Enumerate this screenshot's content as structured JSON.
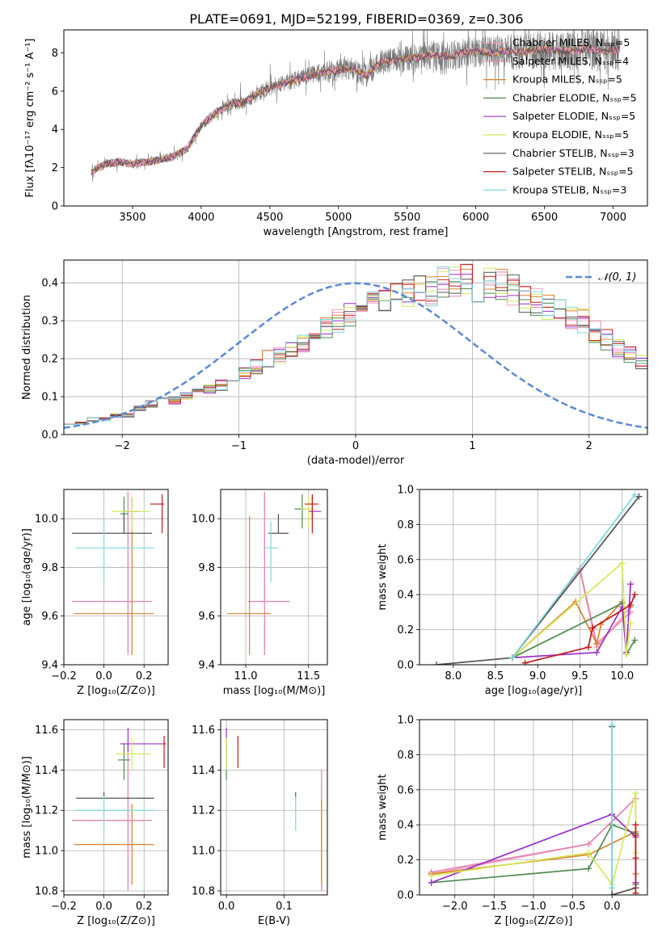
{
  "figure": {
    "title": "PLATE=0691, MJD=52199, FIBERID=0369, z=0.306"
  },
  "colors": {
    "Chabrier MILES": "#f0a1bd",
    "Salpeter MILES": "#e685b3",
    "Kroupa MILES": "#d9822b",
    "Chabrier ELODIE": "#4f8a52",
    "Salpeter ELODIE": "#9b30c9",
    "Kroupa ELODIE": "#d6e85a",
    "Chabrier STELIB": "#555555",
    "Salpeter STELIB": "#c21b1b",
    "Kroupa STELIB": "#7bd9de",
    "normal_curve": "#5b8ad6",
    "grid": "#b0b0b0"
  },
  "chart_data": [
    {
      "type": "line",
      "name": "spectrum",
      "xlabel": "wavelength [Angstrom, rest frame]",
      "ylabel": "Flux [fλ10⁻¹⁷ erg cm⁻² s⁻¹ A⁻¹]",
      "xlim": [
        3000,
        7250
      ],
      "ylim": [
        0,
        9.2
      ],
      "xticks": [
        3500,
        4000,
        4500,
        5000,
        5500,
        6000,
        6500,
        7000
      ],
      "yticks": [
        0,
        2,
        4,
        6,
        8
      ],
      "grid": false,
      "legend_position": "top-right",
      "continuum": {
        "x": [
          3200,
          3300,
          3400,
          3500,
          3600,
          3700,
          3800,
          3900,
          4000,
          4100,
          4200,
          4300,
          4400,
          4500,
          4600,
          4700,
          4800,
          4900,
          5000,
          5100,
          5200,
          5300,
          5400,
          5500,
          5600,
          5700,
          5800,
          5900,
          6000,
          6100,
          6200,
          6300,
          6400,
          6500,
          6600,
          6700,
          6800,
          6900,
          7000,
          7050
        ],
        "y": [
          1.8,
          2.2,
          2.3,
          2.2,
          2.3,
          2.4,
          2.6,
          3.0,
          4.2,
          4.8,
          5.3,
          5.4,
          5.8,
          6.2,
          6.4,
          6.6,
          6.8,
          7.0,
          7.1,
          7.2,
          6.8,
          7.5,
          7.6,
          7.7,
          7.8,
          7.9,
          7.8,
          8.0,
          8.1,
          8.0,
          8.1,
          8.0,
          8.1,
          8.2,
          8.1,
          8.1,
          8.2,
          8.1,
          8.1,
          8.2
        ]
      },
      "series": [
        {
          "name": "Chabrier MILES, Nₛₛₚ=5"
        },
        {
          "name": "Salpeter MILES, Nₛₛₚ=4"
        },
        {
          "name": "Kroupa MILES, Nₛₛₚ=5"
        },
        {
          "name": "Chabrier ELODIE, Nₛₛₚ=5"
        },
        {
          "name": "Salpeter ELODIE, Nₛₛₚ=5"
        },
        {
          "name": "Kroupa ELODIE, Nₛₛₚ=5"
        },
        {
          "name": "Chabrier STELIB, Nₛₛₚ=3"
        },
        {
          "name": "Salpeter STELIB, Nₛₛₚ=5"
        },
        {
          "name": "Kroupa STELIB, Nₛₛₚ=3"
        }
      ]
    },
    {
      "type": "line",
      "name": "residual histogram",
      "xlabel": "(data-model)/error",
      "ylabel": "Normed distribution",
      "xlim": [
        -2.5,
        2.5
      ],
      "ylim": [
        0,
        0.46
      ],
      "xticks": [
        -2,
        -1,
        0,
        1,
        2
      ],
      "yticks": [
        0.0,
        0.1,
        0.2,
        0.3,
        0.4
      ],
      "grid": true,
      "legend_position": "top-right",
      "legend": "𝒩(0, 1)",
      "bin_edges_start": -2.5,
      "bin_width": 0.1,
      "histogram": [
        0.03,
        0.03,
        0.04,
        0.04,
        0.05,
        0.05,
        0.07,
        0.08,
        0.09,
        0.09,
        0.1,
        0.11,
        0.12,
        0.13,
        0.14,
        0.16,
        0.18,
        0.2,
        0.21,
        0.22,
        0.24,
        0.26,
        0.28,
        0.3,
        0.32,
        0.33,
        0.35,
        0.36,
        0.38,
        0.37,
        0.39,
        0.38,
        0.4,
        0.4,
        0.41,
        0.39,
        0.4,
        0.4,
        0.38,
        0.36,
        0.35,
        0.34,
        0.33,
        0.31,
        0.3,
        0.27,
        0.25,
        0.23,
        0.21,
        0.19,
        0.17,
        0.15,
        0.13,
        0.12,
        0.11,
        0.1,
        0.08,
        0.07,
        0.06,
        0.05,
        0.05,
        0.04,
        0.03
      ]
    },
    {
      "type": "scatter",
      "name": "age vs Z",
      "xlabel": "Z [log₁₀(Z/Z⊙)]",
      "ylabel": "age  [log₁₀(age/yr)]",
      "xlim": [
        -0.2,
        0.32
      ],
      "ylim": [
        9.4,
        10.12
      ],
      "xticks": [
        -0.2,
        0.0,
        0.2
      ],
      "yticks": [
        9.4,
        9.6,
        9.8,
        10.0
      ],
      "grid": true,
      "points": [
        {
          "series": "Chabrier MILES",
          "x": 0.12,
          "xerr": [
            0.28,
            0.12
          ],
          "y": 9.66,
          "yerr": [
            0.22,
            0.45
          ]
        },
        {
          "series": "Salpeter MILES",
          "x": 0.12,
          "xerr": [
            0.28,
            0.12
          ],
          "y": 9.66,
          "yerr": [
            0.22,
            0.45
          ]
        },
        {
          "series": "Kroupa MILES",
          "x": 0.14,
          "xerr": [
            0.29,
            0.11
          ],
          "y": 9.61,
          "yerr": [
            0.17,
            0.4
          ]
        },
        {
          "series": "Chabrier ELODIE",
          "x": 0.1,
          "xerr": [
            0.02,
            0.02
          ],
          "y": 10.02,
          "yerr": [
            0.08,
            0.07
          ]
        },
        {
          "series": "Salpeter ELODIE",
          "x": 0.14,
          "xerr": [
            0.04,
            0.04
          ],
          "y": 10.03,
          "yerr": [
            0.03,
            0.06
          ]
        },
        {
          "series": "Kroupa ELODIE",
          "x": 0.14,
          "xerr": [
            0.1,
            0.09
          ],
          "y": 10.03,
          "yerr": [
            0.08,
            0.06
          ]
        },
        {
          "series": "Chabrier STELIB",
          "x": 0.1,
          "xerr": [
            0.26,
            0.14
          ],
          "y": 9.94,
          "yerr": [
            0.0,
            0.08
          ]
        },
        {
          "series": "Salpeter STELIB",
          "x": 0.29,
          "xerr": [
            0.06,
            0.01
          ],
          "y": 10.06,
          "yerr": [
            0.12,
            0.04
          ]
        },
        {
          "series": "Kroupa STELIB",
          "x": 0.0,
          "xerr": [
            0.14,
            0.25
          ],
          "y": 9.88,
          "yerr": [
            0.14,
            0.11
          ]
        }
      ]
    },
    {
      "type": "scatter",
      "name": "age vs mass",
      "xlabel": "mass [log₁₀(M/M⊙)]",
      "ylabel": "",
      "xlim": [
        10.8,
        11.65
      ],
      "ylim": [
        9.4,
        10.12
      ],
      "xticks": [
        11.0,
        11.5
      ],
      "yticks": [
        9.4,
        9.6,
        9.8,
        10.0
      ],
      "grid": true,
      "points": [
        {
          "series": "Chabrier MILES",
          "x": 11.15,
          "xerr": [
            0.13,
            0.2
          ],
          "y": 9.66,
          "yerr": [
            0.22,
            0.45
          ]
        },
        {
          "series": "Salpeter MILES",
          "x": 11.15,
          "xerr": [
            0.13,
            0.2
          ],
          "y": 9.66,
          "yerr": [
            0.22,
            0.45
          ]
        },
        {
          "series": "Kroupa MILES",
          "x": 11.03,
          "xerr": [
            0.18,
            0.17
          ],
          "y": 9.61,
          "yerr": [
            0.17,
            0.4
          ]
        },
        {
          "series": "Chabrier ELODIE",
          "x": 11.45,
          "xerr": [
            0.06,
            0.05
          ],
          "y": 10.04,
          "yerr": [
            0.08,
            0.06
          ]
        },
        {
          "series": "Salpeter ELODIE",
          "x": 11.53,
          "xerr": [
            0.03,
            0.07
          ],
          "y": 10.03,
          "yerr": [
            0.04,
            0.06
          ]
        },
        {
          "series": "Kroupa ELODIE",
          "x": 11.5,
          "xerr": [
            0.06,
            0.04
          ],
          "y": 10.04,
          "yerr": [
            0.08,
            0.06
          ]
        },
        {
          "series": "Chabrier STELIB",
          "x": 11.26,
          "xerr": [
            0.08,
            0.08
          ],
          "y": 9.94,
          "yerr": [
            0.0,
            0.08
          ]
        },
        {
          "series": "Salpeter STELIB",
          "x": 11.53,
          "xerr": [
            0.06,
            0.05
          ],
          "y": 10.06,
          "yerr": [
            0.12,
            0.04
          ]
        },
        {
          "series": "Kroupa STELIB",
          "x": 11.2,
          "xerr": [
            0.06,
            0.06
          ],
          "y": 9.88,
          "yerr": [
            0.14,
            0.11
          ]
        }
      ]
    },
    {
      "type": "line",
      "name": "mass weight vs age",
      "xlabel": "age  [log₁₀(age/yr)]",
      "ylabel": "mass weight",
      "xlim": [
        7.6,
        10.3
      ],
      "ylim": [
        0.0,
        1.0
      ],
      "xticks": [
        8.0,
        8.5,
        9.0,
        9.5,
        10.0
      ],
      "yticks": [
        0.0,
        0.2,
        0.4,
        0.6,
        0.8,
        1.0
      ],
      "grid": true,
      "series": [
        {
          "series": "Chabrier MILES",
          "x": [
            8.7,
            9.5,
            9.7,
            10.1
          ],
          "y": [
            0.04,
            0.54,
            0.1,
            0.33
          ]
        },
        {
          "series": "Salpeter MILES",
          "x": [
            8.7,
            9.5,
            9.7,
            10.1
          ],
          "y": [
            0.04,
            0.55,
            0.12,
            0.3
          ]
        },
        {
          "series": "Kroupa MILES",
          "x": [
            8.7,
            9.45,
            9.7,
            9.75,
            10.0
          ],
          "y": [
            0.04,
            0.36,
            0.12,
            0.23,
            0.36
          ]
        },
        {
          "series": "Chabrier ELODIE",
          "x": [
            8.7,
            10.0,
            10.05,
            10.15
          ],
          "y": [
            0.04,
            0.35,
            0.06,
            0.14
          ]
        },
        {
          "series": "Salpeter ELODIE",
          "x": [
            8.7,
            9.7,
            10.0,
            10.05,
            10.1
          ],
          "y": [
            0.04,
            0.07,
            0.33,
            0.07,
            0.46
          ]
        },
        {
          "series": "Kroupa ELODIE",
          "x": [
            8.7,
            10.0,
            10.05,
            10.1
          ],
          "y": [
            0.04,
            0.58,
            0.06,
            0.24
          ]
        },
        {
          "series": "Chabrier STELIB",
          "x": [
            7.8,
            8.7,
            10.2
          ],
          "y": [
            0.0,
            0.04,
            0.96
          ]
        },
        {
          "series": "Salpeter STELIB",
          "x": [
            8.85,
            9.6,
            9.65,
            10.1,
            10.15
          ],
          "y": [
            0.01,
            0.1,
            0.21,
            0.34,
            0.4
          ]
        },
        {
          "series": "Kroupa STELIB",
          "x": [
            8.7,
            10.15
          ],
          "y": [
            0.04,
            0.97
          ]
        }
      ]
    },
    {
      "type": "scatter",
      "name": "mass vs Z",
      "xlabel": "Z [log₁₀(Z/Z⊙)]",
      "ylabel": "mass [log₁₀(M/M⊙)]",
      "xlim": [
        -0.2,
        0.32
      ],
      "ylim": [
        10.78,
        11.65
      ],
      "xticks": [
        -0.2,
        0.0,
        0.2
      ],
      "yticks": [
        10.8,
        11.0,
        11.2,
        11.4,
        11.6
      ],
      "grid": true,
      "points": [
        {
          "series": "Chabrier MILES",
          "x": 0.12,
          "xerr": [
            0.28,
            0.12
          ],
          "y": 11.15,
          "yerr": [
            0.35,
            0.38
          ]
        },
        {
          "series": "Salpeter MILES",
          "x": 0.12,
          "xerr": [
            0.28,
            0.12
          ],
          "y": 11.15,
          "yerr": [
            0.35,
            0.38
          ]
        },
        {
          "series": "Kroupa MILES",
          "x": 0.14,
          "xerr": [
            0.29,
            0.11
          ],
          "y": 11.03,
          "yerr": [
            0.2,
            0.2
          ]
        },
        {
          "series": "Chabrier ELODIE",
          "x": 0.1,
          "xerr": [
            0.03,
            0.03
          ],
          "y": 11.45,
          "yerr": [
            0.1,
            0.08
          ]
        },
        {
          "series": "Salpeter ELODIE",
          "x": 0.12,
          "xerr": [
            0.04,
            0.18
          ],
          "y": 11.53,
          "yerr": [
            0.04,
            0.08
          ]
        },
        {
          "series": "Kroupa ELODIE",
          "x": 0.14,
          "xerr": [
            0.08,
            0.09
          ],
          "y": 11.48,
          "yerr": [
            0.08,
            0.08
          ]
        },
        {
          "series": "Chabrier STELIB",
          "x": 0.0,
          "xerr": [
            0.14,
            0.25
          ],
          "y": 11.26,
          "yerr": [
            0.0,
            0.03
          ]
        },
        {
          "series": "Salpeter STELIB",
          "x": 0.3,
          "xerr": [
            0.0,
            0.01
          ],
          "y": 11.53,
          "yerr": [
            0.12,
            0.04
          ]
        },
        {
          "series": "Kroupa STELIB",
          "x": 0.0,
          "xerr": [
            0.14,
            0.25
          ],
          "y": 11.2,
          "yerr": [
            0.1,
            0.07
          ]
        }
      ]
    },
    {
      "type": "scatter",
      "name": "mass vs E(B-V)",
      "xlabel": "E(B-V)",
      "ylabel": "",
      "xlim": [
        -0.01,
        0.175
      ],
      "ylim": [
        10.78,
        11.65
      ],
      "xticks": [
        0.0,
        0.1
      ],
      "yticks": [
        10.8,
        11.0,
        11.2,
        11.4,
        11.6
      ],
      "grid": true,
      "points": [
        {
          "series": "Chabrier MILES",
          "x": 0.165,
          "y": 11.15,
          "yerr": [
            0.35,
            0.2
          ]
        },
        {
          "series": "Salpeter MILES",
          "x": 0.165,
          "y": 11.15,
          "yerr": [
            0.35,
            0.25
          ]
        },
        {
          "series": "Kroupa MILES",
          "x": 0.165,
          "y": 11.03,
          "yerr": [
            0.2,
            0.22
          ]
        },
        {
          "series": "Chabrier ELODIE",
          "x": 0.0,
          "y": 11.45,
          "yerr": [
            0.1,
            0.08
          ]
        },
        {
          "series": "Salpeter ELODIE",
          "x": 0.0,
          "y": 11.53,
          "yerr": [
            0.04,
            0.08
          ]
        },
        {
          "series": "Kroupa ELODIE",
          "x": 0.0,
          "y": 11.48,
          "yerr": [
            0.08,
            0.08
          ]
        },
        {
          "series": "Chabrier STELIB",
          "x": 0.12,
          "y": 11.26,
          "yerr": [
            0.0,
            0.03
          ]
        },
        {
          "series": "Salpeter STELIB",
          "x": 0.02,
          "y": 11.53,
          "yerr": [
            0.12,
            0.04
          ]
        },
        {
          "series": "Kroupa STELIB",
          "x": 0.12,
          "y": 11.2,
          "yerr": [
            0.1,
            0.07
          ]
        }
      ]
    },
    {
      "type": "line",
      "name": "mass weight vs Z",
      "xlabel": "Z [log₁₀(Z/Z⊙)]",
      "ylabel": "mass weight",
      "xlim": [
        -2.45,
        0.45
      ],
      "ylim": [
        0.0,
        1.0
      ],
      "xticks": [
        -2.0,
        -1.5,
        -1.0,
        -0.5,
        0.0
      ],
      "yticks": [
        0.0,
        0.2,
        0.4,
        0.6,
        0.8,
        1.0
      ],
      "grid": true,
      "series": [
        {
          "series": "Chabrier MILES",
          "x": [
            -2.3,
            -0.3,
            0.3,
            0.3
          ],
          "y": [
            0.12,
            0.29,
            0.55,
            0.35
          ]
        },
        {
          "series": "Salpeter MILES",
          "x": [
            -2.3,
            -0.3,
            0.3
          ],
          "y": [
            0.13,
            0.29,
            0.55
          ]
        },
        {
          "series": "Kroupa MILES",
          "x": [
            -2.3,
            -0.3,
            0.3,
            0.3
          ],
          "y": [
            0.12,
            0.23,
            0.36,
            0.12
          ]
        },
        {
          "series": "Chabrier ELODIE",
          "x": [
            -2.3,
            -0.3,
            0.0,
            0.3,
            0.3
          ],
          "y": [
            0.07,
            0.15,
            0.4,
            0.35,
            0.06
          ]
        },
        {
          "series": "Salpeter ELODIE",
          "x": [
            -2.3,
            0.0,
            0.3,
            0.3
          ],
          "y": [
            0.07,
            0.46,
            0.33,
            0.07
          ]
        },
        {
          "series": "Kroupa ELODIE",
          "x": [
            -2.3,
            -0.3,
            0.0,
            0.3,
            0.3
          ],
          "y": [
            0.11,
            0.24,
            0.06,
            0.58,
            0.24
          ]
        },
        {
          "series": "Chabrier STELIB",
          "x": [
            0.0,
            0.0,
            0.3
          ],
          "y": [
            0.96,
            0.0,
            0.04
          ]
        },
        {
          "series": "Salpeter STELIB",
          "x": [
            0.3,
            0.3,
            0.3,
            0.3
          ],
          "y": [
            0.4,
            0.21,
            0.01,
            0.34
          ]
        },
        {
          "series": "Kroupa STELIB",
          "x": [
            0.0,
            0.0
          ],
          "y": [
            0.97,
            0.04
          ]
        }
      ]
    }
  ]
}
